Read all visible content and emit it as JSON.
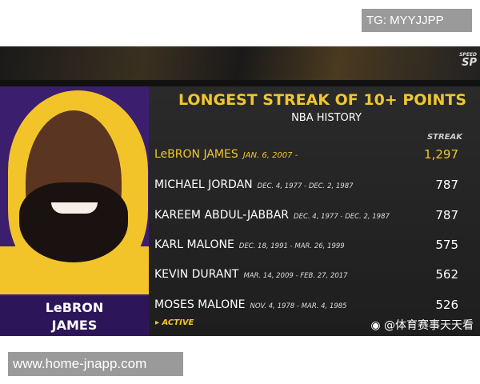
{
  "watermark_top": "TG: MYYJJPP",
  "watermark_bottom": "www.home-jnapp.com",
  "network_logo": {
    "small": "SPEED",
    "big": "SP"
  },
  "player": {
    "first": "LeBRON",
    "last": "JAMES"
  },
  "graphic": {
    "title": "LONGEST STREAK OF 10+ POINTS",
    "subtitle": "NBA HISTORY",
    "column_header": "STREAK",
    "legend": "▸ ACTIVE",
    "rows": [
      {
        "name": "LeBRON JAMES",
        "dates": "JAN. 6, 2007 -",
        "streak": "1,297",
        "active": true
      },
      {
        "name": "MICHAEL JORDAN",
        "dates": "DEC. 4, 1977 - DEC. 2, 1987",
        "streak": "787"
      },
      {
        "name": "KAREEM ABDUL-JABBAR",
        "dates": "DEC. 4, 1977 - DEC. 2, 1987",
        "streak": "787"
      },
      {
        "name": "KARL MALONE",
        "dates": "DEC. 18, 1991 - MAR. 26, 1999",
        "streak": "575"
      },
      {
        "name": "KEVIN DURANT",
        "dates": "MAR. 14, 2009 - FEB. 27, 2017",
        "streak": "562"
      },
      {
        "name": "MOSES MALONE",
        "dates": "NOV. 4, 1978 - MAR. 4, 1985",
        "streak": "526"
      }
    ]
  },
  "weibo": "@体育赛事天天看",
  "colors": {
    "accent": "#f0c630",
    "purple": "#3b1e6e"
  }
}
